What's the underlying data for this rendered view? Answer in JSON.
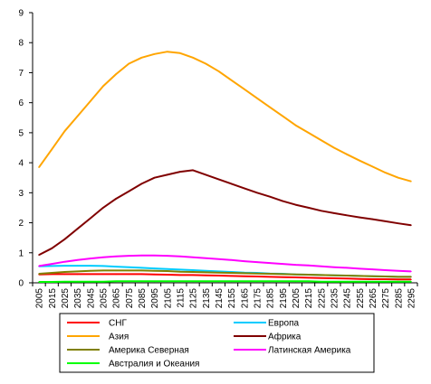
{
  "chart_data": {
    "type": "line",
    "title": "",
    "xlabel": "",
    "ylabel": "",
    "x": [
      2005,
      2015,
      2025,
      2035,
      2045,
      2055,
      2065,
      2075,
      2085,
      2095,
      2105,
      2115,
      2125,
      2135,
      2145,
      2155,
      2165,
      2175,
      2185,
      2195,
      2205,
      2215,
      2225,
      2235,
      2245,
      2255,
      2265,
      2275,
      2285,
      2295
    ],
    "ylim": [
      0,
      9
    ],
    "yticks": [
      0,
      1,
      2,
      3,
      4,
      5,
      6,
      7,
      8,
      9
    ],
    "grid": false,
    "legend_position": "bottom",
    "series": [
      {
        "name": "СНГ",
        "color": "#ff0000",
        "values": [
          0.28,
          0.29,
          0.29,
          0.29,
          0.29,
          0.29,
          0.29,
          0.29,
          0.29,
          0.28,
          0.27,
          0.26,
          0.26,
          0.25,
          0.24,
          0.23,
          0.22,
          0.21,
          0.2,
          0.19,
          0.18,
          0.17,
          0.16,
          0.15,
          0.14,
          0.13,
          0.12,
          0.12,
          0.11,
          0.11
        ]
      },
      {
        "name": "Европа",
        "color": "#00ccff",
        "values": [
          0.55,
          0.56,
          0.57,
          0.57,
          0.57,
          0.56,
          0.54,
          0.52,
          0.5,
          0.48,
          0.46,
          0.44,
          0.42,
          0.4,
          0.38,
          0.36,
          0.34,
          0.33,
          0.31,
          0.3,
          0.28,
          0.27,
          0.26,
          0.25,
          0.24,
          0.23,
          0.22,
          0.21,
          0.2,
          0.2
        ]
      },
      {
        "name": "Азия",
        "color": "#ffa500",
        "values": [
          3.85,
          4.45,
          5.05,
          5.55,
          6.05,
          6.55,
          6.95,
          7.3,
          7.5,
          7.62,
          7.7,
          7.65,
          7.5,
          7.3,
          7.05,
          6.75,
          6.45,
          6.15,
          5.85,
          5.55,
          5.25,
          5.0,
          4.75,
          4.5,
          4.28,
          4.07,
          3.87,
          3.67,
          3.5,
          3.38
        ]
      },
      {
        "name": "Африка",
        "color": "#800000",
        "values": [
          0.93,
          1.15,
          1.45,
          1.8,
          2.15,
          2.5,
          2.8,
          3.05,
          3.3,
          3.5,
          3.6,
          3.7,
          3.75,
          3.6,
          3.45,
          3.3,
          3.15,
          3.0,
          2.87,
          2.72,
          2.6,
          2.5,
          2.4,
          2.32,
          2.25,
          2.18,
          2.12,
          2.05,
          1.98,
          1.92
        ]
      },
      {
        "name": "Америка Северная",
        "color": "#808000",
        "values": [
          0.3,
          0.33,
          0.36,
          0.38,
          0.4,
          0.41,
          0.41,
          0.41,
          0.41,
          0.4,
          0.39,
          0.37,
          0.36,
          0.35,
          0.34,
          0.33,
          0.32,
          0.31,
          0.3,
          0.29,
          0.28,
          0.27,
          0.26,
          0.25,
          0.24,
          0.23,
          0.22,
          0.21,
          0.2,
          0.2
        ]
      },
      {
        "name": "Латинская Америка",
        "color": "#ff00ff",
        "values": [
          0.56,
          0.63,
          0.7,
          0.76,
          0.81,
          0.85,
          0.88,
          0.9,
          0.91,
          0.91,
          0.9,
          0.88,
          0.85,
          0.82,
          0.79,
          0.76,
          0.72,
          0.69,
          0.66,
          0.63,
          0.6,
          0.58,
          0.55,
          0.52,
          0.5,
          0.47,
          0.45,
          0.42,
          0.4,
          0.38
        ]
      },
      {
        "name": "Австралия и Океания",
        "color": "#00ff00",
        "values": [
          0.03,
          0.03,
          0.04,
          0.04,
          0.04,
          0.04,
          0.05,
          0.05,
          0.05,
          0.05,
          0.05,
          0.05,
          0.05,
          0.05,
          0.05,
          0.05,
          0.05,
          0.05,
          0.05,
          0.05,
          0.05,
          0.05,
          0.04,
          0.04,
          0.04,
          0.04,
          0.04,
          0.04,
          0.04,
          0.04
        ]
      }
    ]
  }
}
